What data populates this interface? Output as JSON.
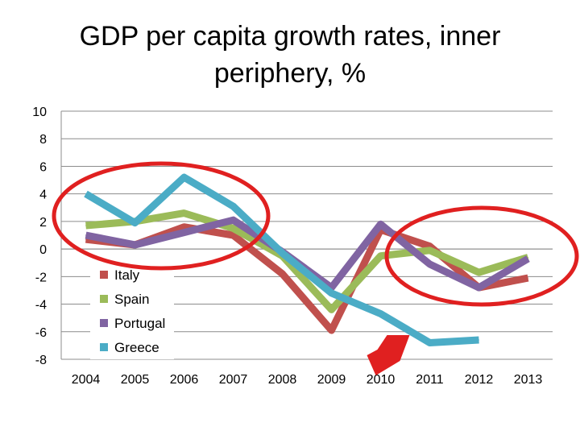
{
  "title_lines": [
    "GDP per capita growth rates, inner",
    "periphery, %"
  ],
  "chart_data": {
    "type": "line",
    "title": "GDP per capita growth rates, inner periphery, %",
    "categories": [
      "2004",
      "2005",
      "2006",
      "2007",
      "2008",
      "2009",
      "2010",
      "2011",
      "2012",
      "2013"
    ],
    "ylim": [
      -8,
      10
    ],
    "yticks": [
      "10",
      "8",
      "6",
      "4",
      "2",
      "0",
      "-2",
      "-4",
      "-6",
      "-8"
    ],
    "ytick_values": [
      10,
      8,
      6,
      4,
      2,
      0,
      -2,
      -4,
      -6,
      -8
    ],
    "xlabel": "",
    "ylabel": "",
    "grid": true,
    "legend": "lower-left inside",
    "series": [
      {
        "name": "Italy",
        "color": "#C0504D",
        "values": [
          0.7,
          0.3,
          1.6,
          1.0,
          -1.8,
          -5.9,
          1.4,
          0.2,
          -2.8,
          -2.1
        ]
      },
      {
        "name": "Spain",
        "color": "#9BBB59",
        "values": [
          1.7,
          2.0,
          2.6,
          1.5,
          -0.5,
          -4.4,
          -0.5,
          -0.1,
          -1.7,
          -0.6
        ]
      },
      {
        "name": "Portugal",
        "color": "#8064A2",
        "values": [
          1.0,
          0.3,
          1.2,
          2.1,
          -0.2,
          -2.8,
          1.8,
          -1.1,
          -2.8,
          -0.7
        ]
      },
      {
        "name": "Greece",
        "color": "#4BACC6",
        "values": [
          4.0,
          1.9,
          5.2,
          3.1,
          -0.3,
          -3.2,
          -4.7,
          -6.8,
          -6.6,
          null
        ]
      }
    ]
  },
  "annotations": {
    "circle_color": "#E02020",
    "arrow_color": "#E02020",
    "arrow_target": "2010"
  }
}
